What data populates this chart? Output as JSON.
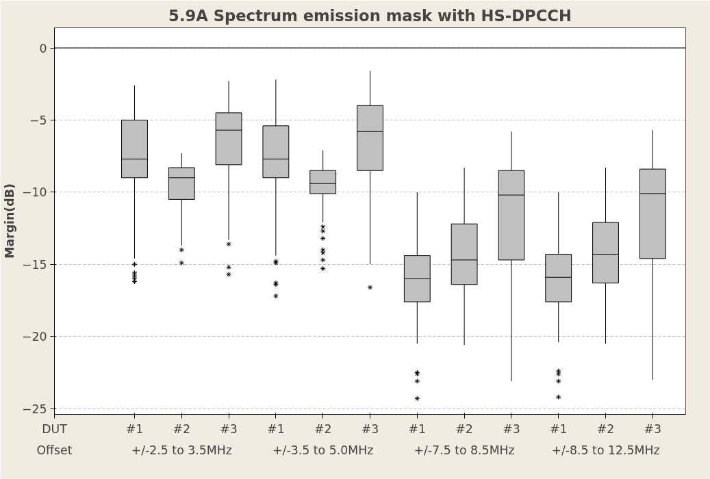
{
  "chart_data": {
    "type": "box",
    "title": "5.9A Spectrum emission mask with HS-DPCCH",
    "ylabel": "Margin(dB)",
    "categories": [
      "#1",
      "#2",
      "#3",
      "#1",
      "#2",
      "#3",
      "#1",
      "#2",
      "#3",
      "#1",
      "#2",
      "#3"
    ],
    "boxes": [
      {
        "low": -14.6,
        "q1": -9.0,
        "median": -7.7,
        "q3": -5.0,
        "high": -2.6,
        "outliers": [
          -15.0,
          -15.6,
          -15.8,
          -16.0,
          -16.2
        ]
      },
      {
        "low": -13.7,
        "q1": -10.5,
        "median": -9.0,
        "q3": -8.3,
        "high": -7.3,
        "outliers": [
          -14.0,
          -14.9
        ]
      },
      {
        "low": -13.3,
        "q1": -8.1,
        "median": -5.7,
        "q3": -4.5,
        "high": -2.3,
        "outliers": [
          -13.6,
          -15.2,
          -15.7
        ]
      },
      {
        "low": -14.4,
        "q1": -9.0,
        "median": -7.7,
        "q3": -5.4,
        "high": -2.2,
        "outliers": [
          -14.8,
          -14.9,
          -16.3,
          -16.4,
          -17.2
        ]
      },
      {
        "low": -12.1,
        "q1": -10.1,
        "median": -9.4,
        "q3": -8.5,
        "high": -7.1,
        "outliers": [
          -12.4,
          -12.7,
          -13.2,
          -14.0,
          -14.2,
          -14.7,
          -15.3
        ]
      },
      {
        "low": -15.0,
        "q1": -8.5,
        "median": -5.8,
        "q3": -4.0,
        "high": -1.6,
        "outliers": [
          -16.6
        ]
      },
      {
        "low": -20.5,
        "q1": -17.6,
        "median": -16.0,
        "q3": -14.4,
        "high": -10.0,
        "outliers": [
          -22.5,
          -22.6,
          -23.1,
          -24.3
        ]
      },
      {
        "low": -20.6,
        "q1": -16.4,
        "median": -14.7,
        "q3": -12.2,
        "high": -8.3
      },
      {
        "low": -23.1,
        "q1": -14.7,
        "median": -10.2,
        "q3": -8.5,
        "high": -5.8
      },
      {
        "low": -20.4,
        "q1": -17.6,
        "median": -15.9,
        "q3": -14.3,
        "high": -10.0,
        "outliers": [
          -22.4,
          -22.6,
          -23.1,
          -24.2
        ]
      },
      {
        "low": -20.5,
        "q1": -16.3,
        "median": -14.3,
        "q3": -12.1,
        "high": -8.3
      },
      {
        "low": -23.0,
        "q1": -14.6,
        "median": -10.1,
        "q3": -8.4,
        "high": -5.7
      }
    ],
    "color": "#c0c0c0",
    "ylim": [
      -25.4,
      1.4
    ],
    "yticks": [
      -25,
      -20,
      -15,
      -10,
      -5,
      0
    ],
    "ref_lines": [
      {
        "axis": "y",
        "value": 0,
        "color": "#000000",
        "line_style": "solid"
      }
    ],
    "grid": "y",
    "marker": "star",
    "annotations": [
      "DUT",
      "Offset",
      "+/-2.5 to 3.5MHz",
      "+/-3.5 to 5.0MHz",
      "+/-7.5 to 8.5MHz",
      "+/-8.5 to 12.5MHz"
    ]
  }
}
